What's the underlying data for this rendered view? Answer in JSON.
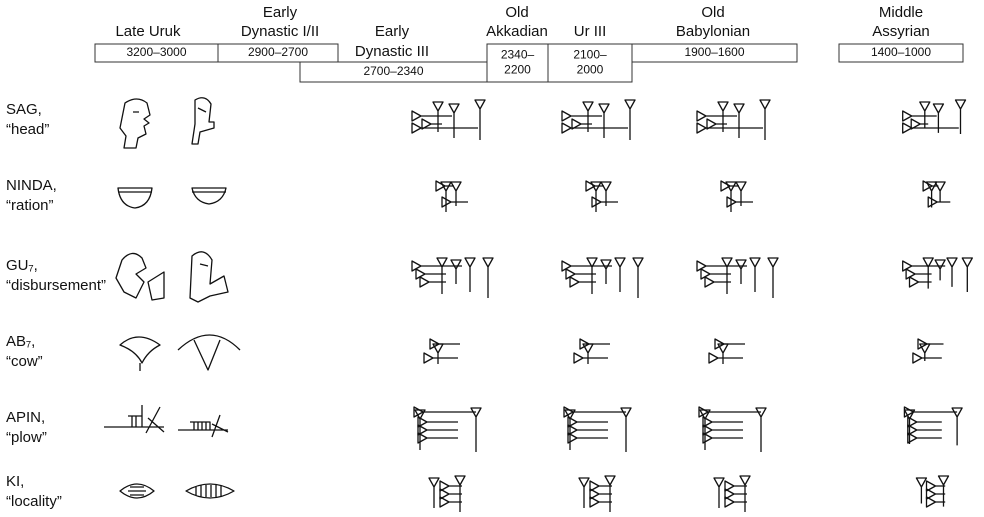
{
  "periods": [
    {
      "name": [
        "Late Uruk"
      ],
      "dates": [
        "3200–3000"
      ]
    },
    {
      "name": [
        "Early",
        "Dynastic I/II"
      ],
      "dates": [
        "2900–2700"
      ]
    },
    {
      "name": [
        "Early",
        "Dynastic III"
      ],
      "dates": [
        "2700–2340"
      ]
    },
    {
      "name": [
        "Old",
        "Akkadian"
      ],
      "dates": [
        "2340–",
        "2200"
      ]
    },
    {
      "name": [
        "Ur III"
      ],
      "dates": [
        "2100–",
        "2000"
      ]
    },
    {
      "name": [
        "Old",
        "Babylonian"
      ],
      "dates": [
        "1900–1600"
      ]
    },
    {
      "name": [
        "Middle",
        "Assyrian"
      ],
      "dates": [
        "1400–1000"
      ]
    }
  ],
  "rows": [
    {
      "label": "SAG,",
      "gloss": "“head”"
    },
    {
      "label": "NINDA,",
      "gloss": "“ration”"
    },
    {
      "label": "GU₇,",
      "gloss": "“disbursement”"
    },
    {
      "label": "AB₇,",
      "gloss": "“cow”"
    },
    {
      "label": "APIN,",
      "gloss": "“plow”"
    },
    {
      "label": "KI,",
      "gloss": "“locality”"
    }
  ]
}
